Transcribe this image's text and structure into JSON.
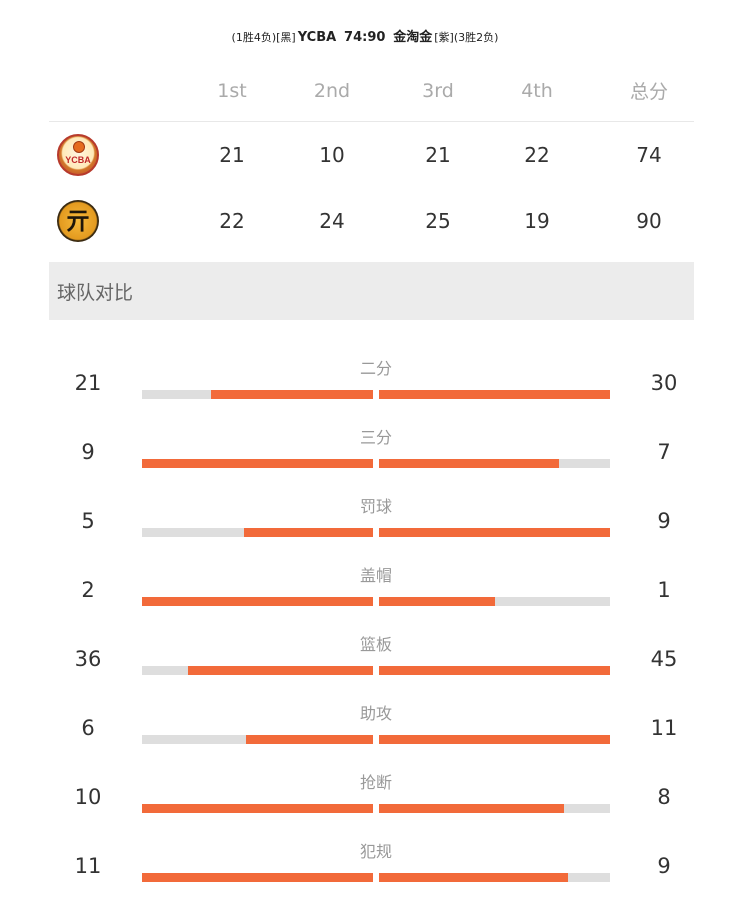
{
  "match": {
    "home_record": "(1胜4负)",
    "home_color": "[黑]",
    "home_name": "YCBA",
    "score": "74:90",
    "away_name": "金淘金",
    "away_color": "[紫]",
    "away_record": "(3胜2负)"
  },
  "scoreboard": {
    "headers": [
      "1st",
      "2nd",
      "3rd",
      "4th",
      "总分"
    ],
    "teams": [
      {
        "logo": "ycba-logo",
        "logo_text": "YCBA",
        "quarters": [
          "21",
          "10",
          "21",
          "22"
        ],
        "total": "74"
      },
      {
        "logo": "jintaojin-logo",
        "logo_text": "亓",
        "quarters": [
          "22",
          "24",
          "25",
          "19"
        ],
        "total": "90"
      }
    ]
  },
  "section_title": "球队对比",
  "colors": {
    "bar_fill": "#f26a3a",
    "bar_track": "#dedede",
    "section_bg": "#ececec"
  },
  "stats": [
    {
      "label": "二分",
      "left": "21",
      "right": "30",
      "left_fill": 0.7,
      "right_fill": 1.0
    },
    {
      "label": "三分",
      "left": "9",
      "right": "7",
      "left_fill": 1.0,
      "right_fill": 0.78
    },
    {
      "label": "罚球",
      "left": "5",
      "right": "9",
      "left_fill": 0.56,
      "right_fill": 1.0
    },
    {
      "label": "盖帽",
      "left": "2",
      "right": "1",
      "left_fill": 1.0,
      "right_fill": 0.5
    },
    {
      "label": "篮板",
      "left": "36",
      "right": "45",
      "left_fill": 0.8,
      "right_fill": 1.0
    },
    {
      "label": "助攻",
      "left": "6",
      "right": "11",
      "left_fill": 0.55,
      "right_fill": 1.0
    },
    {
      "label": "抢断",
      "left": "10",
      "right": "8",
      "left_fill": 1.0,
      "right_fill": 0.8
    },
    {
      "label": "犯规",
      "left": "11",
      "right": "9",
      "left_fill": 1.0,
      "right_fill": 0.82
    }
  ]
}
